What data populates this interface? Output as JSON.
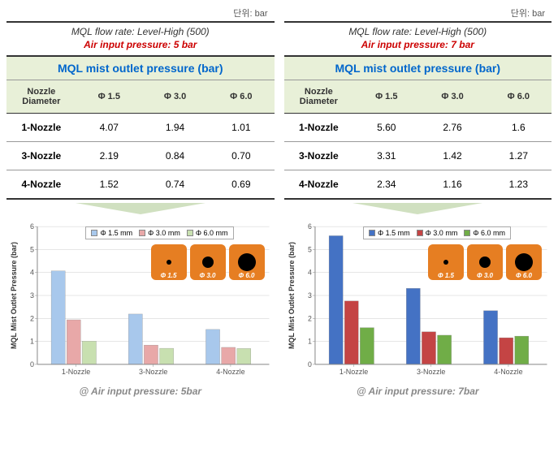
{
  "unit_label": "단위: bar",
  "panels": [
    {
      "flow_rate": "MQL   flow rate: Level-High (500)",
      "air_pressure": "Air input pressure: 5 bar",
      "table_title": "MQL mist outlet pressure (bar)",
      "col_headers": [
        "Nozzle Diameter",
        "Φ 1.5",
        "Φ 3.0",
        "Φ 6.0"
      ],
      "rows": [
        {
          "head": "1-Nozzle",
          "vals": [
            "4.07",
            "1.94",
            "1.01"
          ]
        },
        {
          "head": "3-Nozzle",
          "vals": [
            "2.19",
            "0.84",
            "0.70"
          ]
        },
        {
          "head": "4-Nozzle",
          "vals": [
            "1.52",
            "0.74",
            "0.69"
          ]
        }
      ],
      "chart": {
        "type": "bar",
        "categories": [
          "1-Nozzle",
          "3-Nozzle",
          "4-Nozzle"
        ],
        "series": [
          {
            "name": "Φ 1.5 mm",
            "color": "#a8c8ec",
            "values": [
              4.07,
              2.19,
              1.52
            ]
          },
          {
            "name": "Φ 3.0 mm",
            "color": "#e8a8a8",
            "values": [
              1.94,
              0.84,
              0.74
            ]
          },
          {
            "name": "Φ 6.0 mm",
            "color": "#c8e0b0",
            "values": [
              1.01,
              0.7,
              0.69
            ]
          }
        ],
        "ylim": [
          0,
          6
        ],
        "ytick_step": 1,
        "ylabel": "MQL Mist Outlet Pressure (bar)",
        "nozzle_labels": [
          "Φ 1.5",
          "Φ 3.0",
          "Φ 6.0"
        ],
        "hole_sizes": [
          6,
          14,
          22
        ]
      },
      "caption": "@ Air input pressure: 5bar"
    },
    {
      "flow_rate": "MQL   flow rate: Level-High (500)",
      "air_pressure": "Air input pressure: 7 bar",
      "table_title": "MQL mist outlet pressure (bar)",
      "col_headers": [
        "Nozzle Diameter",
        "Φ 1.5",
        "Φ 3.0",
        "Φ 6.0"
      ],
      "rows": [
        {
          "head": "1-Nozzle",
          "vals": [
            "5.60",
            "2.76",
            "1.6"
          ]
        },
        {
          "head": "3-Nozzle",
          "vals": [
            "3.31",
            "1.42",
            "1.27"
          ]
        },
        {
          "head": "4-Nozzle",
          "vals": [
            "2.34",
            "1.16",
            "1.23"
          ]
        }
      ],
      "chart": {
        "type": "bar",
        "categories": [
          "1-Nozzle",
          "3-Nozzle",
          "4-Nozzle"
        ],
        "series": [
          {
            "name": "Φ 1.5 mm",
            "color": "#4472c4",
            "values": [
              5.6,
              3.31,
              2.34
            ]
          },
          {
            "name": "Φ 3.0 mm",
            "color": "#c44444",
            "values": [
              2.76,
              1.42,
              1.16
            ]
          },
          {
            "name": "Φ 6.0 mm",
            "color": "#70ad47",
            "values": [
              1.6,
              1.27,
              1.23
            ]
          }
        ],
        "ylim": [
          0,
          6
        ],
        "ytick_step": 1,
        "ylabel": "MQL Mist Outlet Pressure (bar)",
        "nozzle_labels": [
          "Φ 1.5",
          "Φ 3.0",
          "Φ 6.0"
        ],
        "hole_sizes": [
          6,
          14,
          22
        ]
      },
      "caption": "@ Air input pressure: 7bar"
    }
  ]
}
